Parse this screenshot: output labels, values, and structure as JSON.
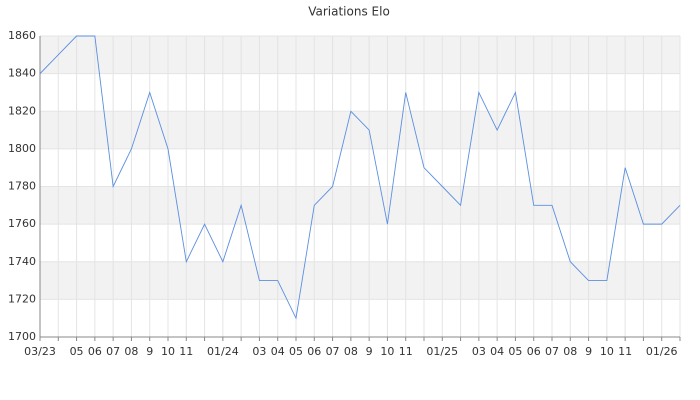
{
  "chart_data": {
    "type": "line",
    "title": "Variations Elo",
    "categories": [
      "03/23",
      null,
      "05",
      "06",
      "07",
      "08",
      "9",
      "10",
      "11",
      null,
      "01/24",
      null,
      "03",
      "04",
      "05",
      "06",
      "07",
      "08",
      "9",
      "10",
      "11",
      null,
      "01/25",
      null,
      "03",
      "04",
      "05",
      "06",
      "07",
      "08",
      "9",
      "10",
      "11",
      null,
      "01/26",
      null
    ],
    "series": [
      {
        "name": "Elo",
        "color": "#5b8fe0",
        "values": [
          1840,
          1850,
          1860,
          1860,
          1780,
          1800,
          1830,
          1800,
          1740,
          1760,
          1740,
          1770,
          1730,
          1730,
          1710,
          1770,
          1780,
          1820,
          1810,
          1760,
          1830,
          1790,
          1780,
          1770,
          1830,
          1810,
          1830,
          1770,
          1770,
          1740,
          1730,
          1730,
          1790,
          1760,
          1760,
          1770
        ]
      }
    ],
    "ylim": [
      1700,
      1860
    ],
    "yticks": [
      1700,
      1720,
      1740,
      1760,
      1780,
      1800,
      1820,
      1840,
      1860
    ],
    "grid": true,
    "alternate_bands": true,
    "band_color": "#f2f2f2",
    "show_legend": false
  }
}
